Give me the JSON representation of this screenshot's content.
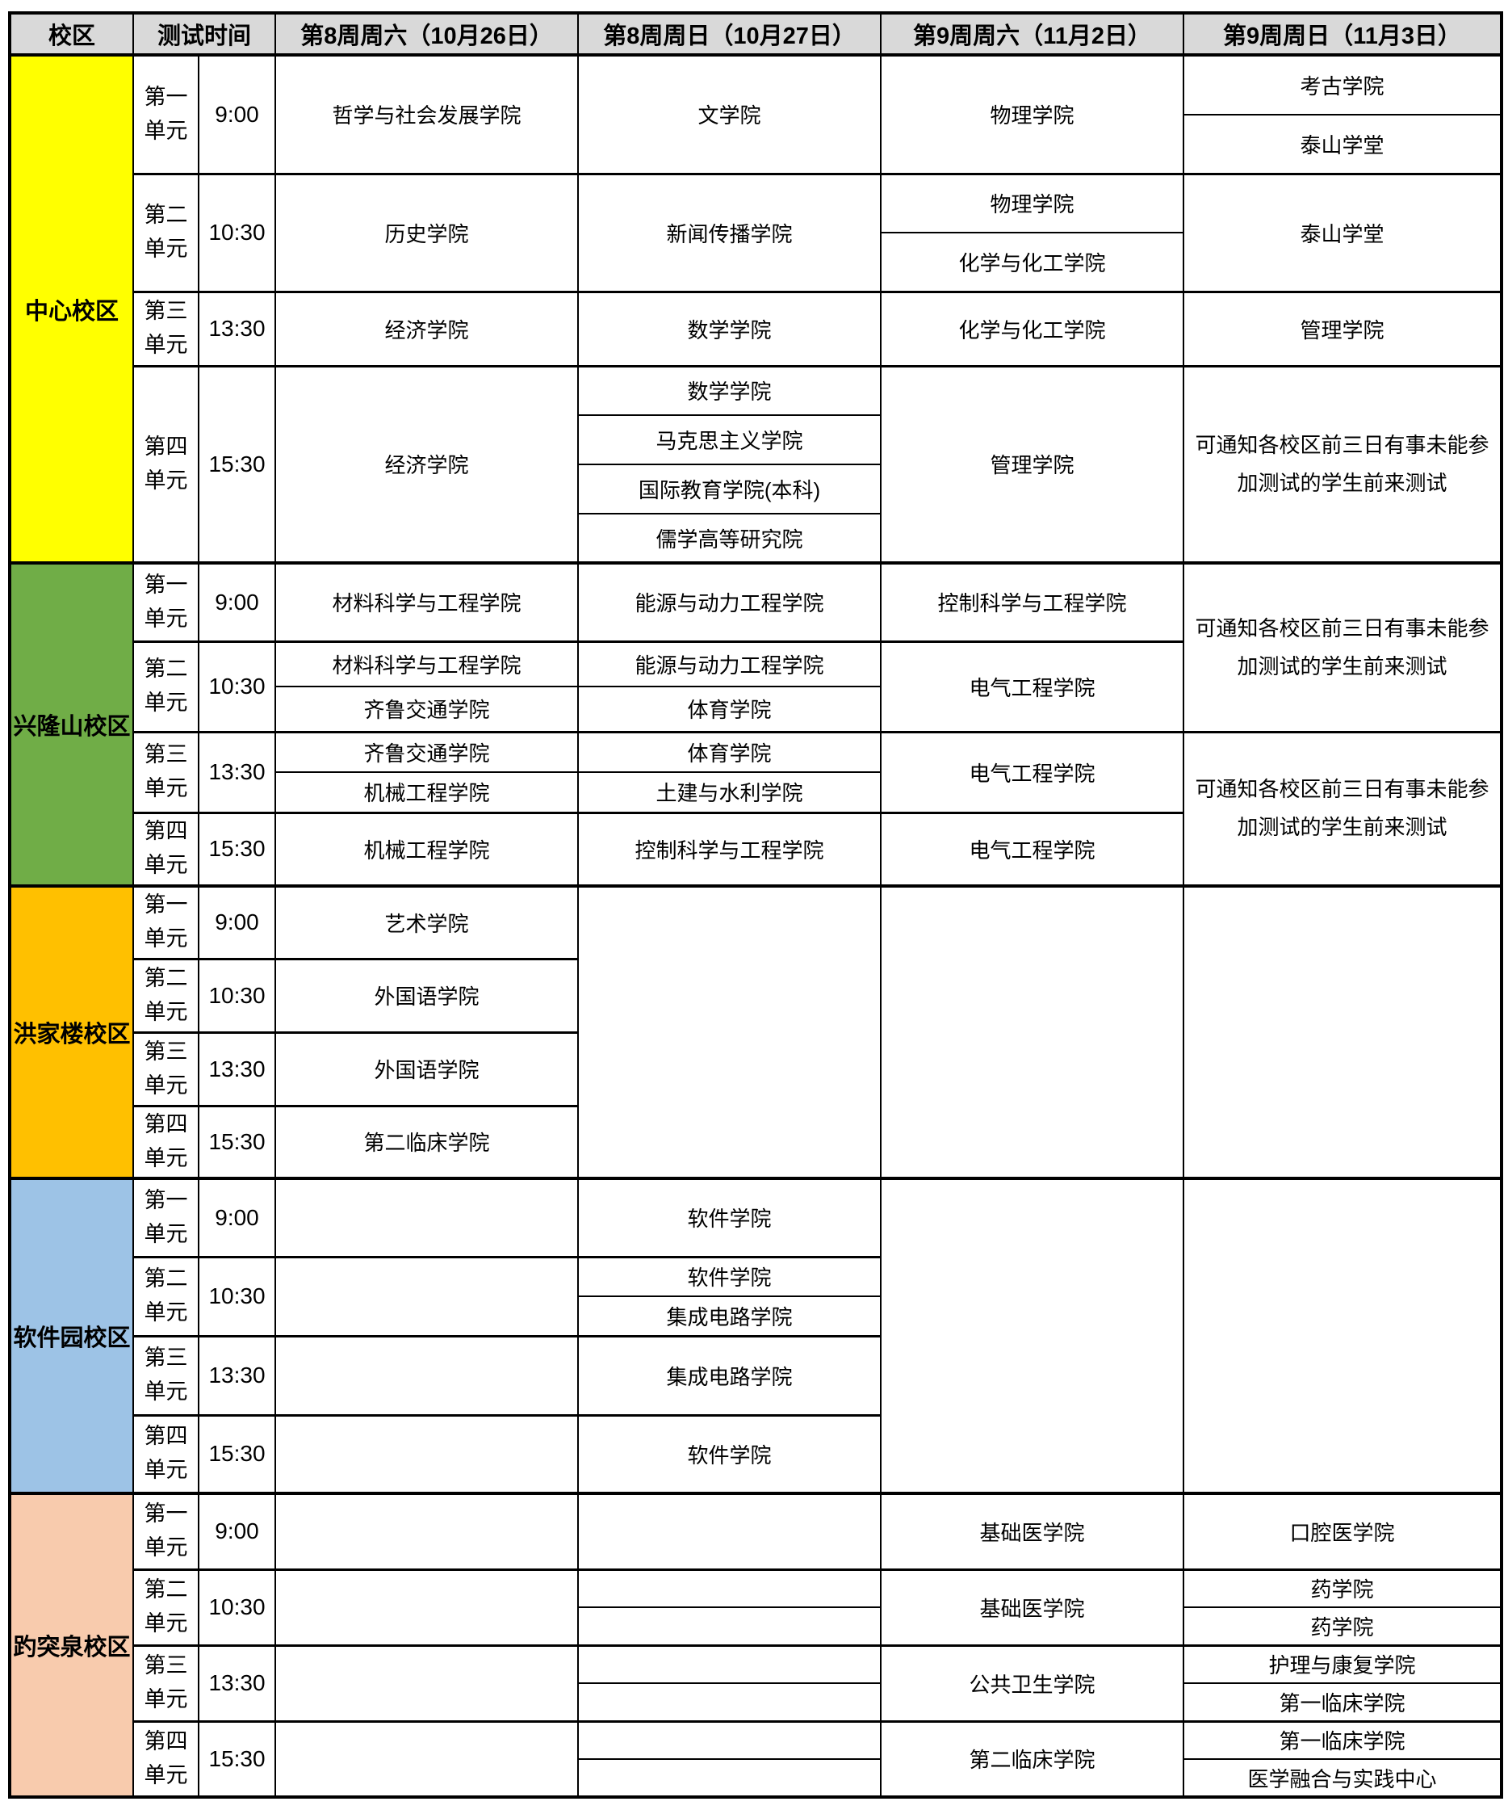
{
  "colors": {
    "header_bg": "#D9D9D9",
    "center": "#FFFF00",
    "xinglongshan": "#70AD47",
    "hongjialou": "#FFC000",
    "softwarepark": "#9DC3E6",
    "baotuquan": "#F8CBAD",
    "border": "#000000"
  },
  "header": {
    "campus": "校区",
    "time": "测试时间",
    "days": [
      "第8周周六（10月26日）",
      "第8周周日（10月27日）",
      "第9周周六（11月2日）",
      "第9周周日（11月3日）"
    ]
  },
  "note": "可通知各校区前三日有事未能参加测试的学生前来测试",
  "rows": [
    {
      "cells": [
        {
          "type": "campus",
          "t": "中心校区",
          "rs": 9,
          "bg": "center"
        },
        {
          "type": "unit",
          "t": "第一单元",
          "rs": 2
        },
        {
          "type": "time",
          "t": "9:00",
          "rs": 2
        },
        {
          "type": "college",
          "t": "哲学与社会发展学院",
          "rs": 2
        },
        {
          "type": "college",
          "t": "文学院",
          "rs": 2
        },
        {
          "type": "college",
          "t": "物理学院",
          "rs": 2
        },
        {
          "type": "college",
          "t": "考古学院"
        }
      ]
    },
    {
      "cells": [
        {
          "type": "college",
          "t": "泰山学堂"
        }
      ]
    },
    {
      "cells": [
        {
          "type": "unit",
          "t": "第二单元",
          "rs": 2
        },
        {
          "type": "time",
          "t": "10:30",
          "rs": 2
        },
        {
          "type": "college",
          "t": "历史学院",
          "rs": 2
        },
        {
          "type": "college",
          "t": "新闻传播学院",
          "rs": 2
        },
        {
          "type": "college",
          "t": "物理学院"
        },
        {
          "type": "college",
          "t": "泰山学堂",
          "rs": 2
        }
      ]
    },
    {
      "cells": [
        {
          "type": "college",
          "t": "化学与化工学院"
        }
      ]
    },
    {
      "cells": [
        {
          "type": "unit",
          "t": "第三单元"
        },
        {
          "type": "time",
          "t": "13:30"
        },
        {
          "type": "college",
          "t": "经济学院"
        },
        {
          "type": "college",
          "t": "数学学院"
        },
        {
          "type": "college",
          "t": "化学与化工学院"
        },
        {
          "type": "college",
          "t": "管理学院"
        }
      ]
    },
    {
      "cells": [
        {
          "type": "unit",
          "t": "第四单元",
          "rs": 4
        },
        {
          "type": "time",
          "t": "15:30",
          "rs": 4
        },
        {
          "type": "college",
          "t": "经济学院",
          "rs": 4
        },
        {
          "type": "college",
          "t": "数学学院"
        },
        {
          "type": "college",
          "t": "管理学院",
          "rs": 4
        },
        {
          "type": "note",
          "t": "可通知各校区前三日有事未能参加测试的学生前来测试",
          "rs": 4
        }
      ]
    },
    {
      "cells": [
        {
          "type": "college",
          "t": "马克思主义学院"
        }
      ]
    },
    {
      "cells": [
        {
          "type": "college",
          "t": "国际教育学院(本科)"
        }
      ]
    },
    {
      "cells": [
        {
          "type": "college",
          "t": "儒学高等研究院"
        }
      ]
    },
    {
      "cells": [
        {
          "type": "campus",
          "t": "兴隆山校区",
          "rs": 6,
          "bg": "xinglongshan"
        },
        {
          "type": "unit",
          "t": "第一单元"
        },
        {
          "type": "time",
          "t": "9:00"
        },
        {
          "type": "college",
          "t": "材料科学与工程学院"
        },
        {
          "type": "college",
          "t": "能源与动力工程学院"
        },
        {
          "type": "college",
          "t": "控制科学与工程学院"
        },
        {
          "type": "note",
          "t": "可通知各校区前三日有事未能参加测试的学生前来测试",
          "rs": 3
        }
      ]
    },
    {
      "cells": [
        {
          "type": "unit",
          "t": "第二单元",
          "rs": 2
        },
        {
          "type": "time",
          "t": "10:30",
          "rs": 2
        },
        {
          "type": "college",
          "t": "材料科学与工程学院"
        },
        {
          "type": "college",
          "t": "能源与动力工程学院"
        },
        {
          "type": "college",
          "t": "电气工程学院",
          "rs": 2
        }
      ]
    },
    {
      "cells": [
        {
          "type": "college",
          "t": "齐鲁交通学院"
        },
        {
          "type": "college",
          "t": "体育学院"
        }
      ]
    },
    {
      "cells": [
        {
          "type": "unit",
          "t": "第三单元",
          "rs": 2
        },
        {
          "type": "time",
          "t": "13:30",
          "rs": 2
        },
        {
          "type": "college",
          "t": "齐鲁交通学院"
        },
        {
          "type": "college",
          "t": "体育学院"
        },
        {
          "type": "college",
          "t": "电气工程学院",
          "rs": 2
        },
        {
          "type": "note",
          "t": "可通知各校区前三日有事未能参加测试的学生前来测试",
          "rs": 3
        }
      ]
    },
    {
      "cells": [
        {
          "type": "college",
          "t": "机械工程学院"
        },
        {
          "type": "college",
          "t": "土建与水利学院"
        }
      ]
    },
    {
      "cells": [
        {
          "type": "unit",
          "t": "第四单元"
        },
        {
          "type": "time",
          "t": "15:30"
        },
        {
          "type": "college",
          "t": "机械工程学院"
        },
        {
          "type": "college",
          "t": "控制科学与工程学院"
        },
        {
          "type": "college",
          "t": "电气工程学院"
        }
      ]
    },
    {
      "cells": [
        {
          "type": "campus",
          "t": "洪家楼校区",
          "rs": 4,
          "bg": "hongjialou"
        },
        {
          "type": "unit",
          "t": "第一单元"
        },
        {
          "type": "time",
          "t": "9:00"
        },
        {
          "type": "college",
          "t": "艺术学院"
        },
        {
          "type": "empty",
          "t": "",
          "rs": 4
        },
        {
          "type": "empty",
          "t": "",
          "rs": 4
        },
        {
          "type": "empty",
          "t": "",
          "rs": 4
        }
      ]
    },
    {
      "cells": [
        {
          "type": "unit",
          "t": "第二单元"
        },
        {
          "type": "time",
          "t": "10:30"
        },
        {
          "type": "college",
          "t": "外国语学院"
        }
      ]
    },
    {
      "cells": [
        {
          "type": "unit",
          "t": "第三单元"
        },
        {
          "type": "time",
          "t": "13:30"
        },
        {
          "type": "college",
          "t": "外国语学院"
        }
      ]
    },
    {
      "cells": [
        {
          "type": "unit",
          "t": "第四单元"
        },
        {
          "type": "time",
          "t": "15:30"
        },
        {
          "type": "college",
          "t": "第二临床学院"
        }
      ]
    },
    {
      "cells": [
        {
          "type": "campus",
          "t": "软件园校区",
          "rs": 5,
          "bg": "softwarepark"
        },
        {
          "type": "unit",
          "t": "第一单元"
        },
        {
          "type": "time",
          "t": "9:00"
        },
        {
          "type": "empty",
          "t": ""
        },
        {
          "type": "college",
          "t": "软件学院"
        },
        {
          "type": "empty",
          "t": "",
          "rs": 5
        },
        {
          "type": "empty",
          "t": "",
          "rs": 5
        }
      ]
    },
    {
      "cells": [
        {
          "type": "unit",
          "t": "第二单元",
          "rs": 2
        },
        {
          "type": "time",
          "t": "10:30",
          "rs": 2
        },
        {
          "type": "empty",
          "t": "",
          "rs": 2
        },
        {
          "type": "college",
          "t": "软件学院"
        }
      ]
    },
    {
      "cells": [
        {
          "type": "college",
          "t": "集成电路学院"
        }
      ]
    },
    {
      "cells": [
        {
          "type": "unit",
          "t": "第三单元"
        },
        {
          "type": "time",
          "t": "13:30"
        },
        {
          "type": "empty",
          "t": ""
        },
        {
          "type": "college",
          "t": "集成电路学院"
        }
      ]
    },
    {
      "cells": [
        {
          "type": "unit",
          "t": "第四单元"
        },
        {
          "type": "time",
          "t": "15:30"
        },
        {
          "type": "empty",
          "t": ""
        },
        {
          "type": "college",
          "t": "软件学院"
        }
      ]
    },
    {
      "cells": [
        {
          "type": "campus",
          "t": "趵突泉校区",
          "rs": 7,
          "bg": "baotuquan"
        },
        {
          "type": "unit",
          "t": "第一单元"
        },
        {
          "type": "time",
          "t": "9:00"
        },
        {
          "type": "empty",
          "t": ""
        },
        {
          "type": "empty",
          "t": ""
        },
        {
          "type": "college",
          "t": "基础医学院"
        },
        {
          "type": "college",
          "t": "口腔医学院"
        }
      ]
    },
    {
      "cells": [
        {
          "type": "unit",
          "t": "第二单元",
          "rs": 2
        },
        {
          "type": "time",
          "t": "10:30",
          "rs": 2
        },
        {
          "type": "empty",
          "t": "",
          "rs": 2
        },
        {
          "type": "empty",
          "t": ""
        },
        {
          "type": "college",
          "t": "基础医学院",
          "rs": 2
        },
        {
          "type": "college",
          "t": "药学院"
        }
      ]
    },
    {
      "cells": [
        {
          "type": "empty",
          "t": ""
        },
        {
          "type": "college",
          "t": "药学院"
        }
      ]
    },
    {
      "cells": [
        {
          "type": "unit",
          "t": "第三单元",
          "rs": 2
        },
        {
          "type": "time",
          "t": "13:30",
          "rs": 2
        },
        {
          "type": "empty",
          "t": "",
          "rs": 2
        },
        {
          "type": "empty",
          "t": ""
        },
        {
          "type": "college",
          "t": "公共卫生学院",
          "rs": 2
        },
        {
          "type": "college",
          "t": "护理与康复学院"
        }
      ]
    },
    {
      "cells": [
        {
          "type": "empty",
          "t": ""
        },
        {
          "type": "college",
          "t": "第一临床学院"
        }
      ]
    },
    {
      "cells": [
        {
          "type": "unit",
          "t": "第四单元",
          "rs": 2
        },
        {
          "type": "time",
          "t": "15:30",
          "rs": 2
        },
        {
          "type": "empty",
          "t": "",
          "rs": 2
        },
        {
          "type": "empty",
          "t": ""
        },
        {
          "type": "college",
          "t": "第二临床学院",
          "rs": 2
        },
        {
          "type": "college",
          "t": "第一临床学院"
        }
      ]
    },
    {
      "cells": [
        {
          "type": "empty",
          "t": ""
        },
        {
          "type": "college",
          "t": "医学融合与实践中心"
        }
      ]
    }
  ]
}
